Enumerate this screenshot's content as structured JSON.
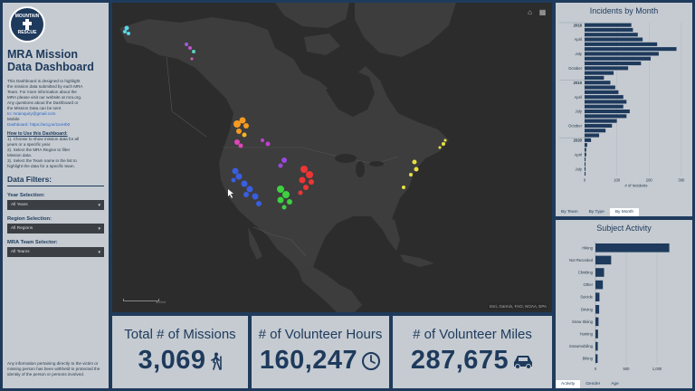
{
  "sidebar": {
    "logo_top": "MOUNTAIN",
    "logo_bottom": "RESCUE",
    "title": "MRA Mission Data Dashboard",
    "description_lines": [
      "This Dashboard is designed to highlight",
      "the mission data submitted by each MRA",
      "Team. For more information about the",
      "MRA please visit our website at mra.org.",
      "Any questions about the Dashboard or",
      "the Mission Data can be sent",
      "to: mrainquiry@gmail.com",
      "Mobile",
      "Dashboard: https://arcg.is/1xxHb0"
    ],
    "howto_title": "How to Use this Dashboard:",
    "howto_lines": [
      "1). Choose to show mission data for all",
      "years or a specific year.",
      "2). Select the MRA Region to filter",
      "Mission data.",
      "3). Select the Team name in the list to",
      "highlight the data for a specific team."
    ],
    "filters_title": "Data Filters:",
    "year_label": "Year Selection:",
    "year_value": "All Years",
    "region_label": "Region Selection:",
    "region_value": "All Regions",
    "team_label": "MRA Team Selector:",
    "team_value": "All Teams",
    "disclaimer": "Any information pertaining directly to the victim or missing person has been withheld to protected the identity of the person or persons involved."
  },
  "map": {
    "home_icon": "home-icon",
    "menu_icon": "grid-icon",
    "attribution": "Esri, Garmin, FAO, NOAA, EPA",
    "scale_label": "500mi",
    "colors": {
      "land": "#3d3d3d",
      "water": "#2c2c2c",
      "borders": "#555555"
    }
  },
  "stats": {
    "missions_label": "Total # of Missions",
    "missions_value": "3,069",
    "hours_label": "# of Volunteer Hours",
    "hours_value": "160,247",
    "miles_label": "# of Volunteer Miles",
    "miles_value": "287,675"
  },
  "incidents_panel": {
    "title": "Incidents by Month",
    "tabs": [
      "By Team",
      "By Type",
      "By Month"
    ],
    "active_tab": 2,
    "x_title": "# of Incidents",
    "x_ticks": [
      "0",
      "100",
      "200",
      "300"
    ]
  },
  "subject_panel": {
    "title": "Subject Activity",
    "tabs": [
      "Activity",
      "Gender",
      "Age"
    ],
    "active_tab": 0,
    "x_ticks": [
      "0",
      "500",
      "1,000"
    ]
  },
  "chart_data": [
    {
      "type": "bar",
      "orientation": "horizontal",
      "title": "Incidents by Month",
      "xlabel": "# of Incidents",
      "xlim": [
        0,
        320
      ],
      "category_labels": [
        {
          "index": 0,
          "label": "2018"
        },
        {
          "index": 3,
          "label": "April"
        },
        {
          "index": 6,
          "label": "July"
        },
        {
          "index": 9,
          "label": "October"
        },
        {
          "index": 12,
          "label": "2019"
        },
        {
          "index": 15,
          "label": "April"
        },
        {
          "index": 18,
          "label": "July"
        },
        {
          "index": 21,
          "label": "October"
        },
        {
          "index": 24,
          "label": "2020"
        },
        {
          "index": 27,
          "label": "April"
        },
        {
          "index": 30,
          "label": "July"
        }
      ],
      "values": [
        145,
        150,
        165,
        180,
        225,
        285,
        230,
        205,
        175,
        135,
        90,
        60,
        80,
        95,
        105,
        120,
        130,
        120,
        140,
        130,
        100,
        85,
        65,
        45,
        20,
        8,
        5,
        5,
        3,
        3,
        3,
        3
      ]
    },
    {
      "type": "bar",
      "orientation": "horizontal",
      "title": "Subject Activity",
      "xlim": [
        0,
        1500
      ],
      "categories": [
        "Hiking",
        "Not Recorded",
        "Climbing",
        "Other",
        "Suicide",
        "Driving",
        "Snow Skiing",
        "Hunting",
        "Snowmobiling",
        "Biking"
      ],
      "values": [
        1200,
        255,
        140,
        120,
        65,
        60,
        50,
        42,
        38,
        35
      ]
    }
  ]
}
